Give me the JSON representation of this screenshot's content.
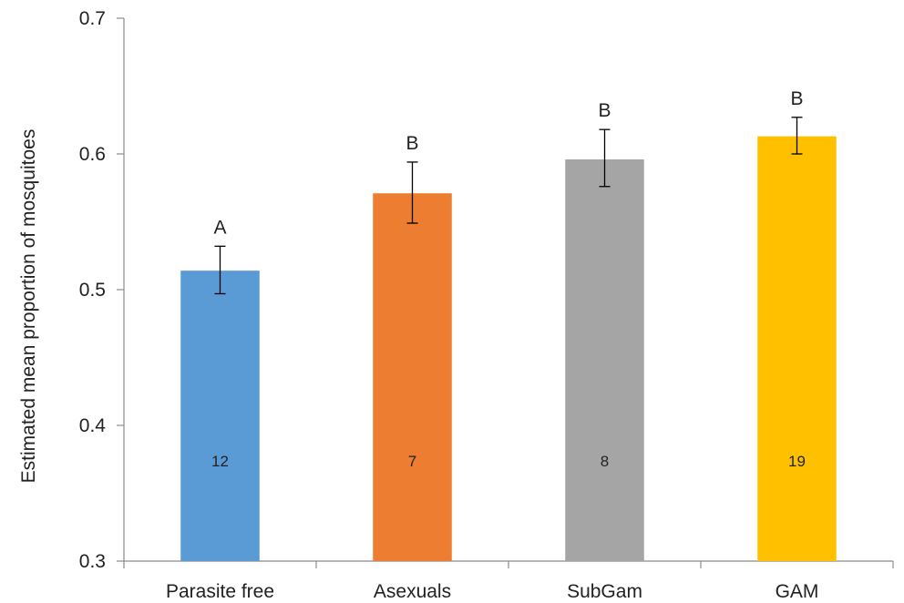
{
  "chart_data": {
    "type": "bar",
    "title": "",
    "xlabel": "",
    "ylabel": "Estimated mean proportion of mosquitoes",
    "ylim": [
      0.3,
      0.7
    ],
    "yticks": [
      "0.3",
      "0.4",
      "0.5",
      "0.6",
      "0.7"
    ],
    "grid": false,
    "categories": [
      "Parasite free",
      "Asexuals",
      "SubGam",
      "GAM"
    ],
    "values": [
      0.514,
      0.571,
      0.596,
      0.613
    ],
    "error_low": [
      0.497,
      0.549,
      0.576,
      0.6
    ],
    "error_high": [
      0.532,
      0.594,
      0.618,
      0.627
    ],
    "significance_labels": [
      "A",
      "B",
      "B",
      "B"
    ],
    "sample_sizes": [
      "12",
      "7",
      "8",
      "19"
    ],
    "colors": [
      "#5b9bd5",
      "#ed7d31",
      "#a5a5a5",
      "#ffc000"
    ]
  }
}
